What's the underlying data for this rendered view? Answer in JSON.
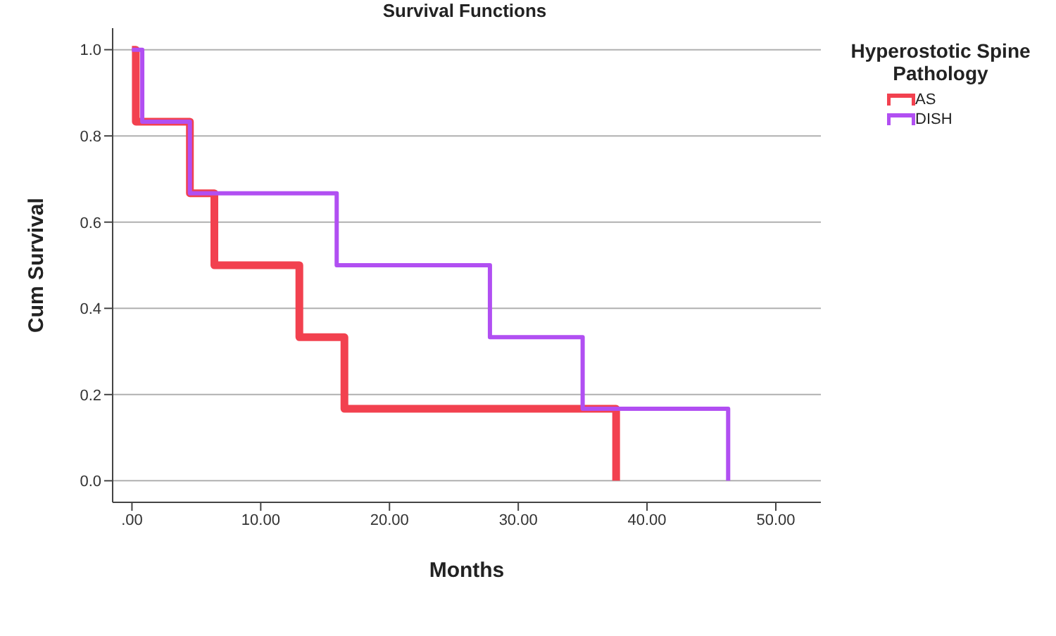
{
  "chart_data": {
    "type": "step",
    "title": "Survival Functions",
    "xlabel": "Months",
    "ylabel": "Cum Survival",
    "legend_title": "Hyperostotic Spine Pathology",
    "legend": "top right",
    "grid": "y",
    "marker": "none",
    "line_style": "solid",
    "xlim": [
      -1.5,
      53.5
    ],
    "ylim": [
      -0.05,
      1.05
    ],
    "xticks": [
      {
        "value": 0,
        "label": ".00"
      },
      {
        "value": 10,
        "label": "10.00"
      },
      {
        "value": 20,
        "label": "20.00"
      },
      {
        "value": 30,
        "label": "30.00"
      },
      {
        "value": 40,
        "label": "40.00"
      },
      {
        "value": 50,
        "label": "50.00"
      }
    ],
    "yticks": [
      {
        "value": 0,
        "label": "0.0"
      },
      {
        "value": 0.2,
        "label": "0.2"
      },
      {
        "value": 0.4,
        "label": "0.4"
      },
      {
        "value": 0.6,
        "label": "0.6"
      },
      {
        "value": 0.8,
        "label": "0.8"
      },
      {
        "value": 1,
        "label": "1.0"
      }
    ],
    "series": [
      {
        "name": "AS",
        "color": "#f2414f",
        "x": [
          0,
          0.3,
          4.5,
          6.4,
          13,
          16.5,
          37.6
        ],
        "values": [
          1,
          0.833,
          0.667,
          0.5,
          0.333,
          0.167,
          0
        ]
      },
      {
        "name": "DISH",
        "color": "#b14ff2",
        "x": [
          0,
          0.8,
          4.5,
          15.9,
          27.8,
          35,
          46.3
        ],
        "values": [
          1,
          0.833,
          0.667,
          0.5,
          0.333,
          0.167,
          0
        ]
      }
    ]
  }
}
